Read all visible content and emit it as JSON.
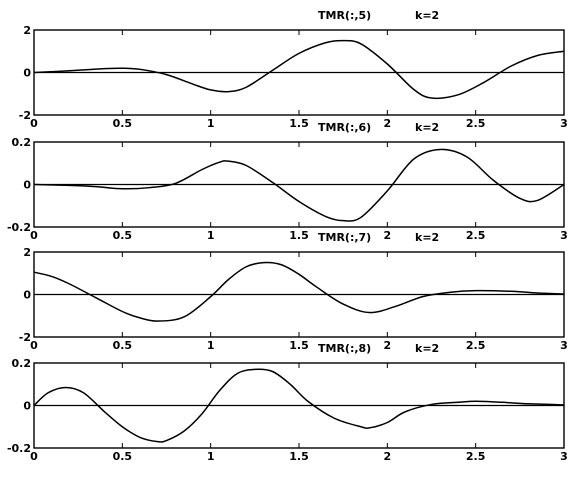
{
  "chart_data": [
    {
      "type": "line",
      "title": "TMR(:,5)",
      "annotation": "k=2",
      "xlim": [
        0,
        3
      ],
      "ylim": [
        -2,
        2
      ],
      "xticks": [
        "0",
        "0.5",
        "1",
        "1.5",
        "2",
        "2.5",
        "3"
      ],
      "yticks": [
        "2",
        "0",
        "-2"
      ],
      "grid": false,
      "series": [
        {
          "x": [
            0,
            0.2,
            0.4,
            0.5,
            0.6,
            0.75,
            0.9,
            1.0,
            1.1,
            1.2,
            1.35,
            1.5,
            1.65,
            1.75,
            1.85,
            2.0,
            2.15,
            2.25,
            2.4,
            2.55,
            2.7,
            2.85,
            3.0
          ],
          "y": [
            0,
            0.08,
            0.18,
            0.2,
            0.15,
            -0.1,
            -0.55,
            -0.82,
            -0.9,
            -0.7,
            0.1,
            0.9,
            1.4,
            1.5,
            1.35,
            0.4,
            -0.8,
            -1.2,
            -1.05,
            -0.45,
            0.3,
            0.8,
            1.0
          ]
        }
      ]
    },
    {
      "type": "line",
      "title": "TMR(:,6)",
      "annotation": "k=2",
      "xlim": [
        0,
        3
      ],
      "ylim": [
        -0.2,
        0.2
      ],
      "xticks": [
        "0",
        "0.5",
        "1",
        "1.5",
        "2",
        "2.5",
        "3"
      ],
      "yticks": [
        "0.2",
        "0",
        "-0.2"
      ],
      "grid": false,
      "series": [
        {
          "x": [
            0,
            0.2,
            0.35,
            0.5,
            0.65,
            0.8,
            0.95,
            1.05,
            1.1,
            1.2,
            1.35,
            1.5,
            1.65,
            1.75,
            1.85,
            2.0,
            2.15,
            2.3,
            2.45,
            2.6,
            2.75,
            2.85,
            3.0
          ],
          "y": [
            0,
            -0.004,
            -0.01,
            -0.02,
            -0.015,
            0.005,
            0.07,
            0.105,
            0.11,
            0.09,
            0.01,
            -0.08,
            -0.15,
            -0.17,
            -0.155,
            -0.03,
            0.12,
            0.165,
            0.13,
            0.02,
            -0.065,
            -0.075,
            0.0
          ]
        }
      ]
    },
    {
      "type": "line",
      "title": "TMR(:,7)",
      "annotation": "k=2",
      "xlim": [
        0,
        3
      ],
      "ylim": [
        -2,
        2
      ],
      "xticks": [
        "0",
        "0.5",
        "1",
        "1.5",
        "2",
        "2.5",
        "3"
      ],
      "yticks": [
        "2",
        "0",
        "-2"
      ],
      "grid": false,
      "series": [
        {
          "x": [
            0,
            0.1,
            0.2,
            0.35,
            0.5,
            0.6,
            0.7,
            0.85,
            1.0,
            1.1,
            1.2,
            1.3,
            1.4,
            1.5,
            1.6,
            1.75,
            1.9,
            2.05,
            2.2,
            2.35,
            2.5,
            2.7,
            2.85,
            3.0
          ],
          "y": [
            1.05,
            0.85,
            0.5,
            -0.15,
            -0.8,
            -1.1,
            -1.25,
            -1.05,
            -0.1,
            0.7,
            1.3,
            1.5,
            1.4,
            0.95,
            0.35,
            -0.45,
            -0.85,
            -0.55,
            -0.1,
            0.1,
            0.18,
            0.15,
            0.07,
            0.02
          ]
        }
      ]
    },
    {
      "type": "line",
      "title": "TMR(:,8)",
      "annotation": "k=2",
      "xlim": [
        0,
        3
      ],
      "ylim": [
        -0.2,
        0.2
      ],
      "xticks": [
        "0",
        "0.5",
        "1",
        "1.5",
        "2",
        "2.5",
        "3"
      ],
      "yticks": [
        "0.2",
        "0",
        "-0.2"
      ],
      "grid": false,
      "series": [
        {
          "x": [
            0,
            0.08,
            0.18,
            0.28,
            0.4,
            0.5,
            0.6,
            0.7,
            0.75,
            0.85,
            0.95,
            1.05,
            1.15,
            1.25,
            1.35,
            1.45,
            1.55,
            1.7,
            1.85,
            1.9,
            2.0,
            2.1,
            2.25,
            2.4,
            2.5,
            2.65,
            2.8,
            3.0
          ],
          "y": [
            0,
            0.06,
            0.085,
            0.06,
            -0.03,
            -0.1,
            -0.15,
            -0.17,
            -0.165,
            -0.12,
            -0.04,
            0.07,
            0.15,
            0.17,
            0.16,
            0.1,
            0.02,
            -0.06,
            -0.1,
            -0.105,
            -0.08,
            -0.03,
            0.005,
            0.015,
            0.02,
            0.015,
            0.008,
            0.003
          ]
        }
      ]
    }
  ]
}
